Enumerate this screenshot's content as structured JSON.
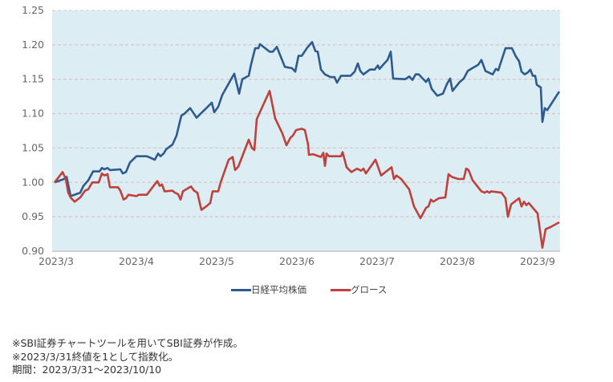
{
  "chart_data": {
    "type": "line",
    "title": "",
    "xlabel": "",
    "ylabel": "",
    "x_unit": "months since 2023/3",
    "xlim": [
      -0.03,
      6.3
    ],
    "ylim": [
      0.9,
      1.25
    ],
    "grid": true,
    "legend_position": "bottom-center",
    "x_ticks": [
      {
        "x": 0,
        "label": "2023/3"
      },
      {
        "x": 1,
        "label": "2023/4"
      },
      {
        "x": 2,
        "label": "2023/5"
      },
      {
        "x": 3,
        "label": "2023/6"
      },
      {
        "x": 4,
        "label": "2023/7"
      },
      {
        "x": 5,
        "label": "2023/8"
      },
      {
        "x": 6,
        "label": "2023/9"
      }
    ],
    "y_ticks": [
      "0.90",
      "0.95",
      "1.00",
      "1.05",
      "1.10",
      "1.15",
      "1.20",
      "1.25"
    ],
    "series": [
      {
        "name": "日経平均株価",
        "color": "#2e5a8e",
        "points": [
          [
            0,
            1.0
          ],
          [
            0.12,
            1.005
          ],
          [
            0.15,
            1.008
          ],
          [
            0.2,
            0.98
          ],
          [
            0.32,
            0.985
          ],
          [
            0.36,
            0.995
          ],
          [
            0.42,
            1.003
          ],
          [
            0.48,
            1.016
          ],
          [
            0.56,
            1.016
          ],
          [
            0.59,
            1.021
          ],
          [
            0.62,
            1.019
          ],
          [
            0.66,
            1.021
          ],
          [
            0.69,
            1.018
          ],
          [
            0.82,
            1.019
          ],
          [
            0.85,
            1.013
          ],
          [
            0.89,
            1.015
          ],
          [
            0.94,
            1.029
          ],
          [
            1.02,
            1.038
          ],
          [
            1.15,
            1.038
          ],
          [
            1.25,
            1.033
          ],
          [
            1.29,
            1.042
          ],
          [
            1.32,
            1.038
          ],
          [
            1.36,
            1.042
          ],
          [
            1.39,
            1.048
          ],
          [
            1.47,
            1.055
          ],
          [
            1.52,
            1.068
          ],
          [
            1.58,
            1.097
          ],
          [
            1.62,
            1.1
          ],
          [
            1.69,
            1.108
          ],
          [
            1.77,
            1.094
          ],
          [
            1.9,
            1.109
          ],
          [
            1.96,
            1.116
          ],
          [
            1.99,
            1.102
          ],
          [
            2.04,
            1.11
          ],
          [
            2.09,
            1.127
          ],
          [
            2.2,
            1.15
          ],
          [
            2.24,
            1.158
          ],
          [
            2.3,
            1.129
          ],
          [
            2.34,
            1.15
          ],
          [
            2.42,
            1.155
          ],
          [
            2.45,
            1.172
          ],
          [
            2.5,
            1.195
          ],
          [
            2.54,
            1.195
          ],
          [
            2.56,
            1.201
          ],
          [
            2.68,
            1.19
          ],
          [
            2.72,
            1.19
          ],
          [
            2.77,
            1.197
          ],
          [
            2.87,
            1.168
          ],
          [
            2.96,
            1.166
          ],
          [
            3.0,
            1.161
          ],
          [
            3.04,
            1.184
          ],
          [
            3.08,
            1.184
          ],
          [
            3.15,
            1.196
          ],
          [
            3.21,
            1.204
          ],
          [
            3.25,
            1.191
          ],
          [
            3.28,
            1.19
          ],
          [
            3.32,
            1.164
          ],
          [
            3.37,
            1.157
          ],
          [
            3.44,
            1.153
          ],
          [
            3.49,
            1.153
          ],
          [
            3.52,
            1.145
          ],
          [
            3.57,
            1.155
          ],
          [
            3.69,
            1.155
          ],
          [
            3.74,
            1.161
          ],
          [
            3.78,
            1.173
          ],
          [
            3.81,
            1.162
          ],
          [
            3.85,
            1.157
          ],
          [
            3.93,
            1.164
          ],
          [
            3.99,
            1.164
          ],
          [
            4.03,
            1.17
          ],
          [
            4.05,
            1.165
          ],
          [
            4.11,
            1.173
          ],
          [
            4.15,
            1.178
          ],
          [
            4.19,
            1.19
          ],
          [
            4.22,
            1.151
          ],
          [
            4.37,
            1.15
          ],
          [
            4.42,
            1.154
          ],
          [
            4.46,
            1.149
          ],
          [
            4.5,
            1.157
          ],
          [
            4.54,
            1.157
          ],
          [
            4.58,
            1.152
          ],
          [
            4.63,
            1.146
          ],
          [
            4.66,
            1.151
          ],
          [
            4.7,
            1.136
          ],
          [
            4.77,
            1.126
          ],
          [
            4.84,
            1.129
          ],
          [
            4.89,
            1.143
          ],
          [
            4.93,
            1.151
          ],
          [
            4.96,
            1.133
          ],
          [
            5.05,
            1.146
          ],
          [
            5.1,
            1.151
          ],
          [
            5.15,
            1.162
          ],
          [
            5.22,
            1.167
          ],
          [
            5.28,
            1.171
          ],
          [
            5.32,
            1.178
          ],
          [
            5.37,
            1.162
          ],
          [
            5.46,
            1.157
          ],
          [
            5.5,
            1.165
          ],
          [
            5.53,
            1.163
          ],
          [
            5.62,
            1.195
          ],
          [
            5.7,
            1.195
          ],
          [
            5.75,
            1.183
          ],
          [
            5.79,
            1.176
          ],
          [
            5.82,
            1.161
          ],
          [
            5.86,
            1.157
          ],
          [
            5.9,
            1.16
          ],
          [
            5.93,
            1.164
          ],
          [
            5.96,
            1.155
          ],
          [
            5.99,
            1.155
          ],
          [
            6.01,
            1.142
          ],
          [
            6.06,
            1.138
          ],
          [
            6.08,
            1.088
          ],
          [
            6.11,
            1.108
          ],
          [
            6.14,
            1.105
          ],
          [
            6.29,
            1.132
          ]
        ]
      },
      {
        "name": "グロース",
        "color": "#c0403c",
        "points": [
          [
            0,
            1.0
          ],
          [
            0.1,
            1.015
          ],
          [
            0.14,
            1.005
          ],
          [
            0.17,
            0.985
          ],
          [
            0.2,
            0.978
          ],
          [
            0.25,
            0.972
          ],
          [
            0.32,
            0.978
          ],
          [
            0.35,
            0.983
          ],
          [
            0.38,
            0.988
          ],
          [
            0.42,
            0.99
          ],
          [
            0.47,
            1.0
          ],
          [
            0.55,
            1.0
          ],
          [
            0.59,
            1.013
          ],
          [
            0.62,
            1.01
          ],
          [
            0.66,
            1.012
          ],
          [
            0.69,
            0.993
          ],
          [
            0.79,
            0.993
          ],
          [
            0.82,
            0.988
          ],
          [
            0.86,
            0.975
          ],
          [
            0.89,
            0.977
          ],
          [
            0.92,
            0.982
          ],
          [
            1.02,
            0.98
          ],
          [
            1.05,
            0.982
          ],
          [
            1.15,
            0.982
          ],
          [
            1.28,
            1.002
          ],
          [
            1.31,
            0.995
          ],
          [
            1.34,
            0.997
          ],
          [
            1.37,
            0.987
          ],
          [
            1.47,
            0.988
          ],
          [
            1.5,
            0.985
          ],
          [
            1.54,
            0.983
          ],
          [
            1.57,
            0.975
          ],
          [
            1.6,
            0.987
          ],
          [
            1.7,
            0.994
          ],
          [
            1.74,
            0.988
          ],
          [
            1.78,
            0.985
          ],
          [
            1.83,
            0.96
          ],
          [
            1.9,
            0.966
          ],
          [
            1.94,
            0.97
          ],
          [
            1.97,
            0.987
          ],
          [
            2.04,
            0.987
          ],
          [
            2.07,
            1.0
          ],
          [
            2.17,
            1.033
          ],
          [
            2.22,
            1.037
          ],
          [
            2.25,
            1.018
          ],
          [
            2.29,
            1.023
          ],
          [
            2.42,
            1.062
          ],
          [
            2.46,
            1.05
          ],
          [
            2.49,
            1.047
          ],
          [
            2.52,
            1.092
          ],
          [
            2.68,
            1.133
          ],
          [
            2.72,
            1.11
          ],
          [
            2.75,
            1.093
          ],
          [
            2.84,
            1.071
          ],
          [
            2.89,
            1.054
          ],
          [
            2.94,
            1.065
          ],
          [
            2.97,
            1.068
          ],
          [
            3.01,
            1.076
          ],
          [
            3.08,
            1.078
          ],
          [
            3.12,
            1.076
          ],
          [
            3.16,
            1.055
          ],
          [
            3.17,
            1.04
          ],
          [
            3.22,
            1.041
          ],
          [
            3.32,
            1.037
          ],
          [
            3.35,
            1.043
          ],
          [
            3.37,
            1.024
          ],
          [
            3.39,
            1.042
          ],
          [
            3.42,
            1.038
          ],
          [
            3.57,
            1.038
          ],
          [
            3.59,
            1.044
          ],
          [
            3.64,
            1.022
          ],
          [
            3.7,
            1.015
          ],
          [
            3.77,
            1.02
          ],
          [
            3.82,
            1.017
          ],
          [
            3.85,
            1.02
          ],
          [
            3.88,
            1.013
          ],
          [
            4.0,
            1.033
          ],
          [
            4.07,
            1.01
          ],
          [
            4.2,
            1.022
          ],
          [
            4.23,
            1.005
          ],
          [
            4.26,
            1.01
          ],
          [
            4.32,
            1.005
          ],
          [
            4.42,
            0.99
          ],
          [
            4.48,
            0.965
          ],
          [
            4.56,
            0.948
          ],
          [
            4.63,
            0.963
          ],
          [
            4.66,
            0.965
          ],
          [
            4.69,
            0.975
          ],
          [
            4.72,
            0.972
          ],
          [
            4.79,
            0.977
          ],
          [
            4.87,
            0.978
          ],
          [
            4.91,
            1.012
          ],
          [
            4.95,
            1.008
          ],
          [
            5.03,
            1.005
          ],
          [
            5.1,
            1.005
          ],
          [
            5.13,
            1.02
          ],
          [
            5.16,
            1.018
          ],
          [
            5.21,
            1.003
          ],
          [
            5.32,
            0.987
          ],
          [
            5.36,
            0.985
          ],
          [
            5.39,
            0.987
          ],
          [
            5.42,
            0.985
          ],
          [
            5.44,
            0.987
          ],
          [
            5.57,
            0.985
          ],
          [
            5.62,
            0.977
          ],
          [
            5.65,
            0.95
          ],
          [
            5.69,
            0.968
          ],
          [
            5.79,
            0.977
          ],
          [
            5.82,
            0.965
          ],
          [
            5.85,
            0.972
          ],
          [
            5.88,
            0.967
          ],
          [
            5.91,
            0.97
          ],
          [
            6.02,
            0.955
          ],
          [
            6.08,
            0.905
          ],
          [
            6.12,
            0.932
          ],
          [
            6.18,
            0.935
          ],
          [
            6.29,
            0.942
          ]
        ]
      }
    ]
  },
  "notes": [
    "※SBI証券チャートツールを用いてSBI証券が作成。",
    "※2023/3/31終値を1として指数化。",
    "期間：2023/3/31～2023/10/10"
  ]
}
